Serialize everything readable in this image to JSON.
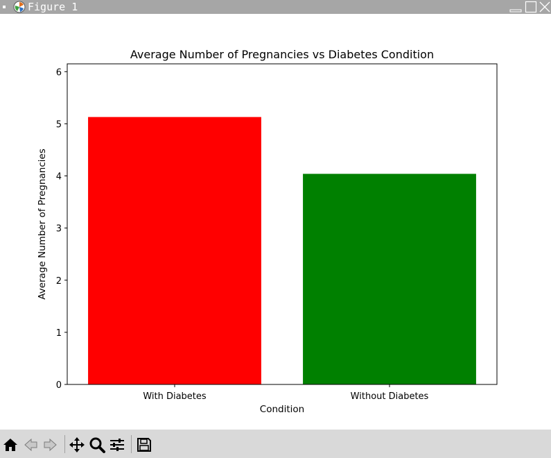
{
  "window": {
    "title": "Figure 1"
  },
  "icons": {
    "app": "matplotlib-icon",
    "minimize": "minimize-icon",
    "maximize": "maximize-icon",
    "close": "close-icon"
  },
  "toolbar": {
    "items": [
      "home-icon",
      "back-arrow-icon",
      "forward-arrow-icon",
      "pan-move-icon",
      "zoom-magnifier-icon",
      "configure-subplots-icon",
      "save-disk-icon"
    ]
  },
  "chart_data": {
    "type": "bar",
    "title": "Average Number of Pregnancies vs Diabetes Condition",
    "xlabel": "Condition",
    "ylabel": "Average Number of Pregnancies",
    "categories": [
      "With Diabetes",
      "Without Diabetes"
    ],
    "values": [
      5.13,
      4.04
    ],
    "colors": [
      "#ff0000",
      "#008000"
    ],
    "ylim": [
      0,
      6.15
    ],
    "yticks": [
      0,
      1,
      2,
      3,
      4,
      5,
      6
    ],
    "grid": false,
    "legend": "none"
  }
}
